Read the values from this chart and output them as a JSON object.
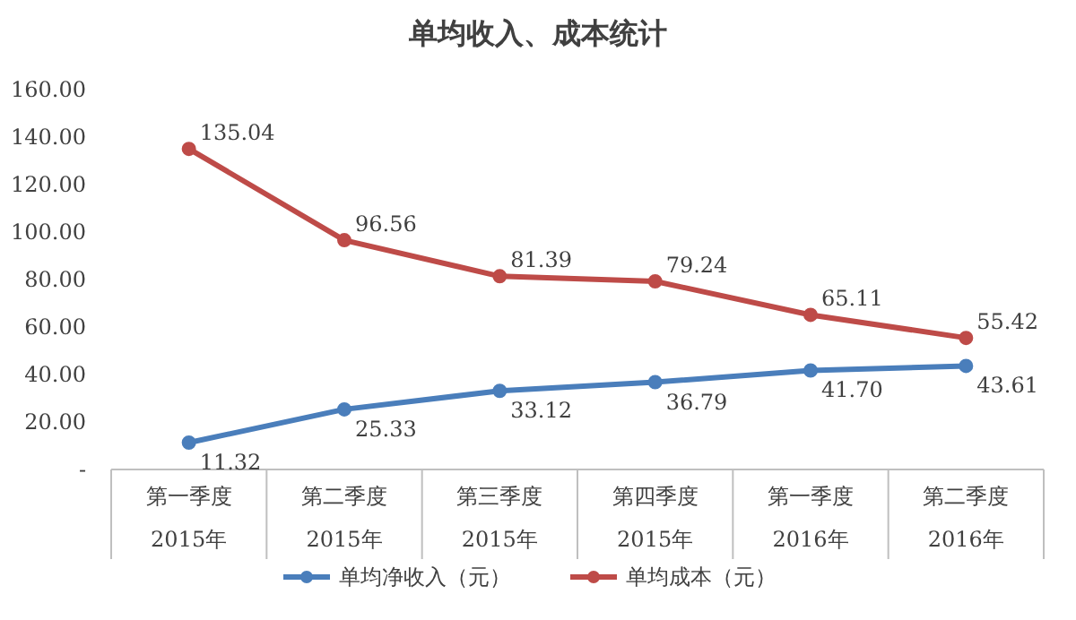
{
  "chart_data": {
    "type": "line",
    "title": "单均收入、成本统计",
    "categories": [
      "第一季度\n2015年",
      "第二季度\n2015年",
      "第三季度\n2015年",
      "第四季度\n2015年",
      "第一季度\n2016年",
      "第二季度\n2016年"
    ],
    "series": [
      {
        "name": "单均净收入（元）",
        "color": "#4a7ebb",
        "values": [
          11.32,
          25.33,
          33.12,
          36.79,
          41.7,
          43.61
        ],
        "value_labels": [
          "11.32",
          "25.33",
          "33.12",
          "36.79",
          "41.70",
          "43.61"
        ]
      },
      {
        "name": "单均成本（元）",
        "color": "#be4b48",
        "values": [
          135.04,
          96.56,
          81.39,
          79.24,
          65.11,
          55.42
        ],
        "value_labels": [
          "135.04",
          "96.56",
          "81.39",
          "79.24",
          "65.11",
          "55.42"
        ]
      }
    ],
    "ylim": [
      0,
      160
    ],
    "yticks": [
      {
        "value": 0,
        "label": "-"
      },
      {
        "value": 20,
        "label": "20.00"
      },
      {
        "value": 40,
        "label": "40.00"
      },
      {
        "value": 60,
        "label": "60.00"
      },
      {
        "value": 80,
        "label": "80.00"
      },
      {
        "value": 100,
        "label": "100.00"
      },
      {
        "value": 120,
        "label": "120.00"
      },
      {
        "value": 140,
        "label": "140.00"
      },
      {
        "value": 160,
        "label": "160.00"
      }
    ],
    "marker": "circle",
    "line_style": "solid",
    "legend": "bottom"
  }
}
